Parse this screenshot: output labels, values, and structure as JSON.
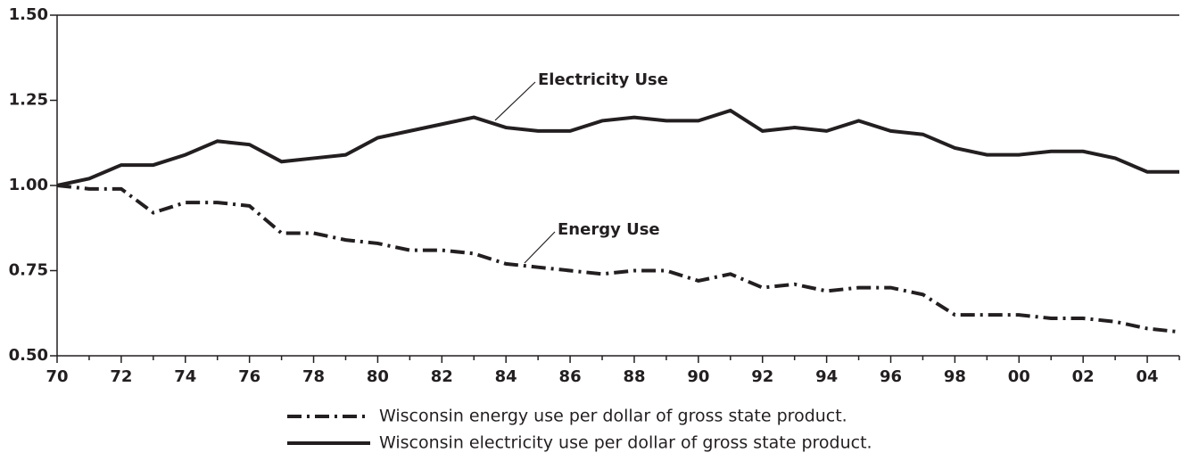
{
  "chart_data": {
    "type": "line",
    "categories": [
      "70",
      null,
      "72",
      null,
      "74",
      null,
      "76",
      null,
      "78",
      null,
      "80",
      null,
      "82",
      null,
      "84",
      null,
      "86",
      null,
      "88",
      null,
      "90",
      null,
      "92",
      null,
      "94",
      null,
      "96",
      null,
      "98",
      null,
      "00",
      null,
      "02",
      null,
      "04",
      null
    ],
    "series": [
      {
        "name": "Wisconsin energy use per dollar of gross state product.",
        "color": "#231f20",
        "dash": "dashdot",
        "values": [
          1.0,
          0.99,
          0.99,
          0.92,
          0.95,
          0.95,
          0.94,
          0.86,
          0.86,
          0.84,
          0.83,
          0.81,
          0.81,
          0.8,
          0.77,
          0.76,
          0.75,
          0.74,
          0.75,
          0.75,
          0.72,
          0.74,
          0.7,
          0.71,
          0.69,
          0.7,
          0.7,
          0.68,
          0.62,
          0.62,
          0.62,
          0.61,
          0.61,
          0.6,
          0.58,
          0.57
        ]
      },
      {
        "name": "Wisconsin electricity use per dollar of gross state product.",
        "color": "#231f20",
        "dash": "solid",
        "values": [
          1.0,
          1.02,
          1.06,
          1.06,
          1.09,
          1.13,
          1.12,
          1.07,
          1.08,
          1.09,
          1.14,
          1.16,
          1.18,
          1.2,
          1.17,
          1.16,
          1.16,
          1.19,
          1.2,
          1.19,
          1.19,
          1.22,
          1.16,
          1.17,
          1.16,
          1.19,
          1.16,
          1.15,
          1.11,
          1.09,
          1.09,
          1.1,
          1.1,
          1.08,
          1.04,
          1.04
        ]
      }
    ],
    "annotations": [
      "Electricity Use",
      "Energy Use"
    ],
    "ylim": [
      0.5,
      1.5
    ],
    "yticks": [
      {
        "value": 0.5,
        "label": "0.50"
      },
      {
        "value": 0.75,
        "label": "0.75"
      },
      {
        "value": 1.0,
        "label": "1.00"
      },
      {
        "value": 1.25,
        "label": "1.25"
      },
      {
        "value": 1.5,
        "label": "1.50"
      }
    ],
    "grid": false
  }
}
